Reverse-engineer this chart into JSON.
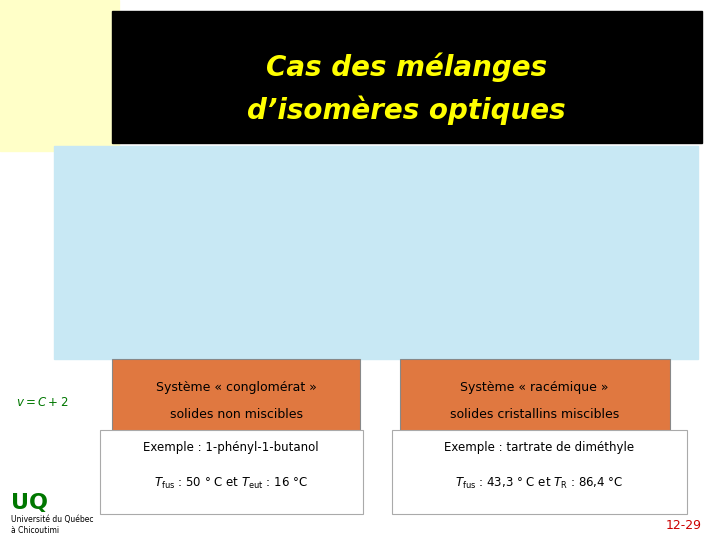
{
  "title_line1": "Cas des mélanges",
  "title_line2": "d’isomères optiques",
  "title_color": "#FFFF00",
  "title_bg": "#000000",
  "slide_bg": "#FFFFFF",
  "diagram_bg": "#C8E8F4",
  "left_curve_color": "#CC0000",
  "right_curve_color": "#3377CC",
  "box_bg": "#E07840",
  "box2_bg": "#E07840",
  "white_box_bg": "#FFFFFF",
  "white_box_border": "#AAAAAA",
  "uq_green": "#007700",
  "footer_color": "#CC0000",
  "yellow_bg": "#FFFFC8",
  "box1_title": "Système « conglomérat »",
  "box1_sub": "solides non miscibles",
  "box2_title": "Système « racémique »",
  "box2_sub": "solides cristallins miscibles",
  "exemple1_line1": "Exemple : 1-phényl-1-butanol",
  "exemple2_line1": "Exemple : tartrate de diméthyle",
  "footer": "12-29"
}
